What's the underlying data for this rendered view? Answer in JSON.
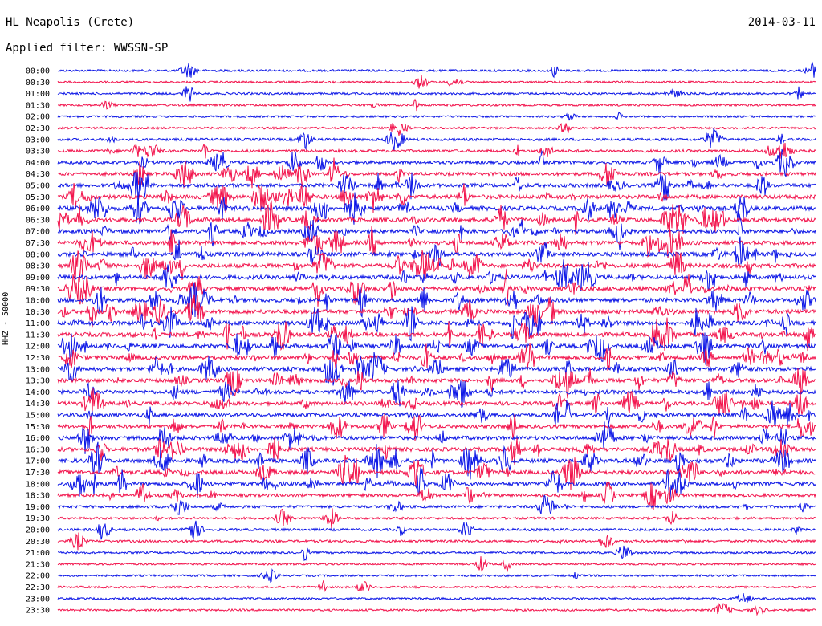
{
  "header": {
    "station": "HL Neapolis (Crete)",
    "date": "2014-03-11",
    "filter": "Applied filter: WWSSN-SP",
    "channel_label": "HHZ - 50000"
  },
  "colors": {
    "trace_a": "#0a14e6",
    "trace_b": "#f2104a"
  },
  "chart_data": {
    "type": "line",
    "title": "HL Neapolis (Crete)",
    "subtitle": "Applied filter: WWSSN-SP",
    "date": "2014-03-11",
    "ylabel": "HHZ - 50000",
    "xlabel": "",
    "row_interval_minutes": 30,
    "rows": [
      {
        "time": "00:00",
        "activity": 0.15
      },
      {
        "time": "00:30",
        "activity": 0.08
      },
      {
        "time": "01:00",
        "activity": 0.12
      },
      {
        "time": "01:30",
        "activity": 0.12
      },
      {
        "time": "02:00",
        "activity": 0.08
      },
      {
        "time": "02:30",
        "activity": 0.1
      },
      {
        "time": "03:00",
        "activity": 0.3
      },
      {
        "time": "03:30",
        "activity": 0.35
      },
      {
        "time": "04:00",
        "activity": 0.55
      },
      {
        "time": "04:30",
        "activity": 0.6
      },
      {
        "time": "05:00",
        "activity": 0.75
      },
      {
        "time": "05:30",
        "activity": 0.85
      },
      {
        "time": "06:00",
        "activity": 0.95
      },
      {
        "time": "06:30",
        "activity": 0.85
      },
      {
        "time": "07:00",
        "activity": 0.85
      },
      {
        "time": "07:30",
        "activity": 0.85
      },
      {
        "time": "08:00",
        "activity": 0.9
      },
      {
        "time": "08:30",
        "activity": 0.9
      },
      {
        "time": "09:00",
        "activity": 0.9
      },
      {
        "time": "09:30",
        "activity": 0.85
      },
      {
        "time": "10:00",
        "activity": 0.9
      },
      {
        "time": "10:30",
        "activity": 0.9
      },
      {
        "time": "11:00",
        "activity": 0.95
      },
      {
        "time": "11:30",
        "activity": 0.9
      },
      {
        "time": "12:00",
        "activity": 0.9
      },
      {
        "time": "12:30",
        "activity": 0.9
      },
      {
        "time": "13:00",
        "activity": 0.85
      },
      {
        "time": "13:30",
        "activity": 0.8
      },
      {
        "time": "14:00",
        "activity": 0.8
      },
      {
        "time": "14:30",
        "activity": 0.75
      },
      {
        "time": "15:00",
        "activity": 0.7
      },
      {
        "time": "15:30",
        "activity": 0.7
      },
      {
        "time": "16:00",
        "activity": 0.75
      },
      {
        "time": "16:30",
        "activity": 0.8
      },
      {
        "time": "17:00",
        "activity": 0.9
      },
      {
        "time": "17:30",
        "activity": 0.85
      },
      {
        "time": "18:00",
        "activity": 0.75
      },
      {
        "time": "18:30",
        "activity": 0.5
      },
      {
        "time": "19:00",
        "activity": 0.35
      },
      {
        "time": "19:30",
        "activity": 0.2
      },
      {
        "time": "20:00",
        "activity": 0.25
      },
      {
        "time": "20:30",
        "activity": 0.2
      },
      {
        "time": "21:00",
        "activity": 0.1
      },
      {
        "time": "21:30",
        "activity": 0.08
      },
      {
        "time": "22:00",
        "activity": 0.08
      },
      {
        "time": "22:30",
        "activity": 0.08
      },
      {
        "time": "23:00",
        "activity": 0.08
      },
      {
        "time": "23:30",
        "activity": 0.1
      }
    ]
  }
}
